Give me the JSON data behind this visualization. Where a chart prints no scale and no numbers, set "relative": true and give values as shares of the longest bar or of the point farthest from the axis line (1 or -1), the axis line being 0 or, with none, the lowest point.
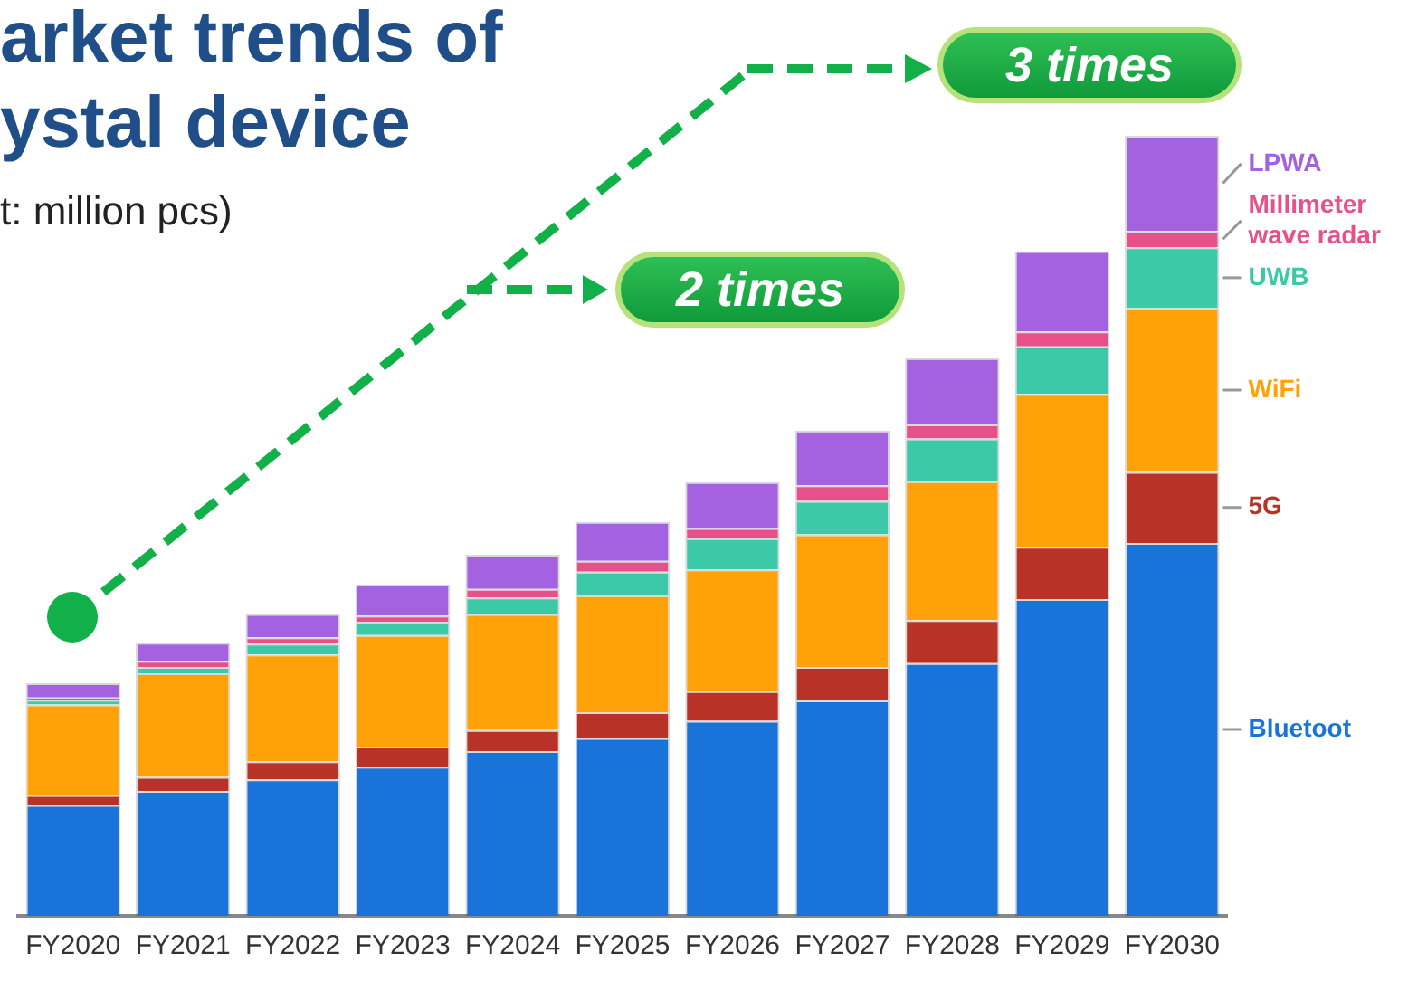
{
  "chart_data": {
    "type": "bar",
    "title": "arket trends of ystal device",
    "subtitle": "t: million pcs)",
    "categories": [
      "FY2020",
      "FY2021",
      "FY2022",
      "FY2023",
      "FY2024",
      "FY2025",
      "FY2026",
      "FY2027",
      "FY2028",
      "FY2029",
      "FY2030"
    ],
    "stacked": true,
    "relative": true,
    "legend": false,
    "grid": false,
    "series": [
      {
        "name": "Bluetoot",
        "color": "#1a73d9",
        "values": [
          0.142,
          0.16,
          0.175,
          0.191,
          0.211,
          0.228,
          0.25,
          0.276,
          0.324,
          0.406,
          0.478
        ]
      },
      {
        "name": "5G",
        "color": "#b83227",
        "values": [
          0.013,
          0.018,
          0.023,
          0.026,
          0.027,
          0.033,
          0.038,
          0.043,
          0.055,
          0.067,
          0.091
        ]
      },
      {
        "name": "WiFi",
        "color": "#ffa20a",
        "values": [
          0.116,
          0.133,
          0.137,
          0.143,
          0.149,
          0.15,
          0.156,
          0.17,
          0.178,
          0.196,
          0.21
        ]
      },
      {
        "name": "UWB",
        "color": "#3cc9a8",
        "values": [
          0.006,
          0.008,
          0.014,
          0.017,
          0.021,
          0.03,
          0.04,
          0.043,
          0.055,
          0.061,
          0.078
        ]
      },
      {
        "name": "Millimeter wave radar",
        "color": "#e8508a",
        "values": [
          0.003,
          0.008,
          0.008,
          0.008,
          0.011,
          0.014,
          0.013,
          0.02,
          0.018,
          0.019,
          0.021
        ]
      },
      {
        "name": "LPWA",
        "color": "#a461e0",
        "values": [
          0.018,
          0.023,
          0.03,
          0.04,
          0.044,
          0.05,
          0.059,
          0.07,
          0.085,
          0.103,
          0.122
        ]
      }
    ],
    "annotations": [
      "2 times",
      "3 times"
    ]
  }
}
